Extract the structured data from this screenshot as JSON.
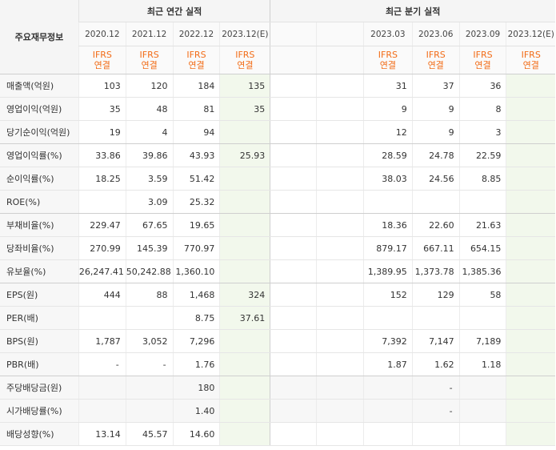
{
  "header": {
    "corner_label": "주요재무정보",
    "annual_title": "최근 연간 실적",
    "quarterly_title": "최근 분기 실적",
    "annual_periods": [
      "2020.12",
      "2021.12",
      "2022.12",
      "2023.12(E)"
    ],
    "quarterly_periods": [
      "2023.03",
      "2023.06",
      "2023.09",
      "2023.12(E)"
    ],
    "accounting_top": "IFRS",
    "accounting_bottom": "연결"
  },
  "rows": [
    {
      "label": "매출액(억원)",
      "annual": [
        "103",
        "120",
        "184",
        "135"
      ],
      "quarterly": [
        "31",
        "37",
        "36",
        ""
      ]
    },
    {
      "label": "영업이익(억원)",
      "annual": [
        "35",
        "48",
        "81",
        "35"
      ],
      "quarterly": [
        "9",
        "9",
        "8",
        ""
      ]
    },
    {
      "label": "당기순이익(억원)",
      "annual": [
        "19",
        "4",
        "94",
        ""
      ],
      "quarterly": [
        "12",
        "9",
        "3",
        ""
      ]
    },
    {
      "label": "영업이익률(%)",
      "annual": [
        "33.86",
        "39.86",
        "43.93",
        "25.93"
      ],
      "quarterly": [
        "28.59",
        "24.78",
        "22.59",
        ""
      ]
    },
    {
      "label": "순이익률(%)",
      "annual": [
        "18.25",
        "3.59",
        "51.42",
        ""
      ],
      "quarterly": [
        "38.03",
        "24.56",
        "8.85",
        ""
      ]
    },
    {
      "label": "ROE(%)",
      "annual": [
        "",
        "3.09",
        "25.32",
        ""
      ],
      "quarterly": [
        "",
        "",
        "",
        ""
      ]
    },
    {
      "label": "부채비율(%)",
      "annual": [
        "229.47",
        "67.65",
        "19.65",
        ""
      ],
      "quarterly": [
        "18.36",
        "22.60",
        "21.63",
        ""
      ]
    },
    {
      "label": "당좌비율(%)",
      "annual": [
        "270.99",
        "145.39",
        "770.97",
        ""
      ],
      "quarterly": [
        "879.17",
        "667.11",
        "654.15",
        ""
      ]
    },
    {
      "label": "유보율(%)",
      "annual": [
        "26,247.41",
        "50,242.88",
        "1,360.10",
        ""
      ],
      "quarterly": [
        "1,389.95",
        "1,373.78",
        "1,385.36",
        ""
      ]
    },
    {
      "label": "EPS(원)",
      "annual": [
        "444",
        "88",
        "1,468",
        "324"
      ],
      "quarterly": [
        "152",
        "129",
        "58",
        ""
      ]
    },
    {
      "label": "PER(배)",
      "annual": [
        "",
        "",
        "8.75",
        "37.61"
      ],
      "quarterly": [
        "",
        "",
        "",
        ""
      ]
    },
    {
      "label": "BPS(원)",
      "annual": [
        "1,787",
        "3,052",
        "7,296",
        ""
      ],
      "quarterly": [
        "7,392",
        "7,147",
        "7,189",
        ""
      ]
    },
    {
      "label": "PBR(배)",
      "annual": [
        "-",
        "-",
        "1.76",
        ""
      ],
      "quarterly": [
        "1.87",
        "1.62",
        "1.18",
        ""
      ]
    },
    {
      "label": "주당배당금(원)",
      "annual": [
        "",
        "",
        "180",
        ""
      ],
      "quarterly": [
        "",
        "-",
        "",
        ""
      ]
    },
    {
      "label": "시가배당률(%)",
      "annual": [
        "",
        "",
        "1.40",
        ""
      ],
      "quarterly": [
        "",
        "-",
        "",
        ""
      ]
    },
    {
      "label": "배당성향(%)",
      "annual": [
        "13.14",
        "45.57",
        "14.60",
        ""
      ],
      "quarterly": [
        "",
        "",
        "",
        ""
      ]
    }
  ]
}
